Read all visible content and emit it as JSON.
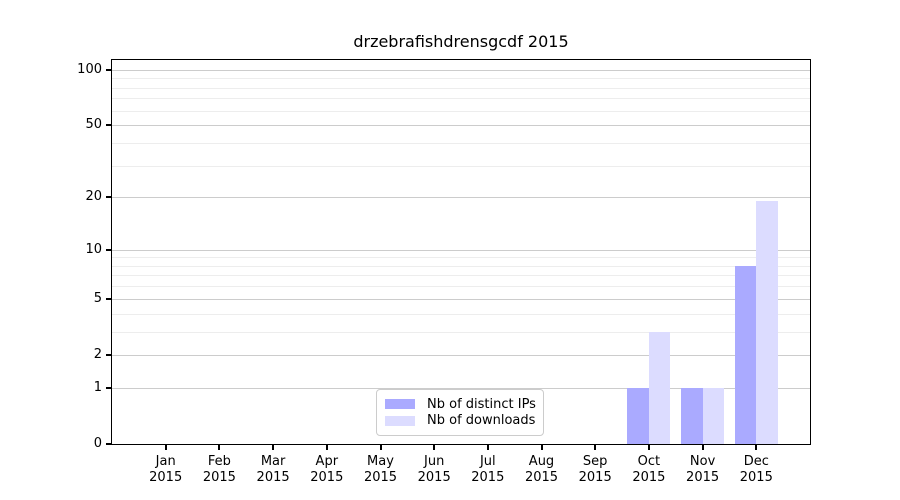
{
  "title": "drzebrafishdrensgcdf 2015",
  "chart_data": {
    "type": "bar",
    "title": "drzebrafishdrensgcdf 2015",
    "categories": [
      "Jan 2015",
      "Feb 2015",
      "Mar 2015",
      "Apr 2015",
      "May 2015",
      "Jun 2015",
      "Jul 2015",
      "Aug 2015",
      "Sep 2015",
      "Oct 2015",
      "Nov 2015",
      "Dec 2015"
    ],
    "month_labels": [
      "Jan",
      "Feb",
      "Mar",
      "Apr",
      "May",
      "Jun",
      "Jul",
      "Aug",
      "Sep",
      "Oct",
      "Nov",
      "Dec"
    ],
    "year_label": "2015",
    "series": [
      {
        "name": "Nb of distinct IPs",
        "color": "#aaaaff",
        "values": [
          0,
          0,
          0,
          0,
          0,
          0,
          0,
          0,
          0,
          1,
          1,
          8
        ]
      },
      {
        "name": "Nb of downloads",
        "color": "#dcdcff",
        "values": [
          0,
          0,
          0,
          0,
          0,
          0,
          0,
          0,
          0,
          3,
          1,
          19
        ]
      }
    ],
    "xlabel": "",
    "ylabel": "",
    "yscale": "log1p",
    "ylim": [
      0,
      113
    ],
    "yticks_major": [
      0,
      1,
      2,
      5,
      10,
      20,
      50,
      100
    ],
    "yticks_minor": [
      3,
      4,
      6,
      7,
      8,
      9,
      30,
      40,
      60,
      70,
      80,
      90
    ],
    "grid": "horizontal",
    "legend_position": "lower-center",
    "colors": {
      "grid_major": "#cccccc",
      "grid_minor": "#ededed",
      "spine": "#000000",
      "background": "#ffffff"
    }
  }
}
